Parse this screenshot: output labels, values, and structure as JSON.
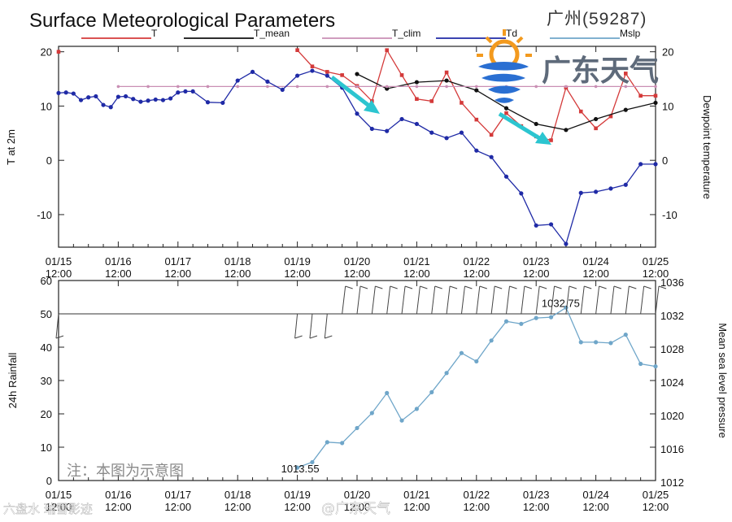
{
  "header": {
    "title": "Surface Meteorological Parameters",
    "station": "广州(59287)"
  },
  "logo": {
    "text": "广东天气"
  },
  "note": "注：本图为示意图",
  "watermarks": [
    "六盘水 瑞雪影迹",
    "@广东天气"
  ],
  "colors": {
    "T": "#d43a3a",
    "T_mean": "#111111",
    "T_clim": "#c98fb4",
    "Td": "#1f2aa6",
    "Mslp": "#6fa6c9",
    "arrow": "#2cc5d0",
    "logo_orange": "#f39a1e",
    "logo_blue": "#2a6fd2",
    "logo_text": "#5e6a7a"
  },
  "chart_data": [
    {
      "type": "line",
      "title": "Surface Meteorological Parameters",
      "ylabel": "T at 2m",
      "ylabel_right": "Dewpoint temperature",
      "ylim": [
        -16,
        21
      ],
      "yticks": [
        -10,
        0,
        10,
        20
      ],
      "xlim": [
        0,
        10
      ],
      "xticks": [
        0,
        1,
        2,
        3,
        4,
        5,
        6,
        7,
        8,
        9,
        10
      ],
      "xticklabels": [
        [
          "01/15",
          "12:00"
        ],
        [
          "01/16",
          "12:00"
        ],
        [
          "01/17",
          "12:00"
        ],
        [
          "01/18",
          "12:00"
        ],
        [
          "01/19",
          "12:00"
        ],
        [
          "01/20",
          "12:00"
        ],
        [
          "01/21",
          "12:00"
        ],
        [
          "01/22",
          "12:00"
        ],
        [
          "01/23",
          "12:00"
        ],
        [
          "01/24",
          "12:00"
        ],
        [
          "01/25",
          "12:00"
        ]
      ],
      "legend": [
        "T",
        "T_mean",
        "T_clim",
        "Td",
        "Mslp"
      ],
      "series": [
        {
          "name": "T",
          "color": "#d43a3a",
          "marker": "square",
          "x": [
            0,
            4.0,
            4.25,
            4.5,
            4.75,
            5.0,
            5.25,
            5.5,
            5.75,
            6.0,
            6.25,
            6.5,
            6.75,
            7.0,
            7.25,
            7.5,
            7.75,
            8.0,
            8.25,
            8.5,
            8.75,
            9.0,
            9.25,
            9.5,
            9.75,
            10.0
          ],
          "y": [
            20,
            20.3,
            17.3,
            16.3,
            15.7,
            13.7,
            10.9,
            20.3,
            15.7,
            11.3,
            10.9,
            16.2,
            10.6,
            7.5,
            4.7,
            8.7,
            6.3,
            4.4,
            3.7,
            13.4,
            9.0,
            5.9,
            8.1,
            16.0,
            11.9,
            11.9
          ]
        },
        {
          "name": "T_mean",
          "color": "#111111",
          "marker": "dot",
          "x": [
            5.0,
            5.5,
            6.0,
            6.5,
            7.0,
            7.5,
            8.0,
            8.5,
            9.0,
            9.5,
            10.0
          ],
          "y": [
            15.9,
            13.2,
            14.4,
            14.7,
            12.9,
            9.6,
            6.7,
            5.6,
            7.6,
            9.3,
            10.6
          ]
        },
        {
          "name": "T_clim",
          "color": "#c98fb4",
          "marker": "dot",
          "x": [
            1.0,
            1.5,
            2.0,
            2.5,
            3.0,
            3.5,
            4.0,
            4.5,
            5.0,
            5.5,
            6.0,
            6.5,
            7.0,
            7.5,
            8.0,
            8.5,
            9.0,
            9.5,
            10.0
          ],
          "y": [
            13.6,
            13.6,
            13.6,
            13.6,
            13.6,
            13.6,
            13.6,
            13.6,
            13.6,
            13.6,
            13.6,
            13.6,
            13.6,
            13.6,
            13.6,
            13.6,
            13.6,
            13.6,
            13.6
          ]
        },
        {
          "name": "Td",
          "color": "#1f2aa6",
          "marker": "dot",
          "x": [
            0,
            0.125,
            0.25,
            0.375,
            0.5,
            0.625,
            0.75,
            0.875,
            1.0,
            1.125,
            1.25,
            1.375,
            1.5,
            1.625,
            1.75,
            1.875,
            2.0,
            2.125,
            2.25,
            2.5,
            2.75,
            3.0,
            3.25,
            3.5,
            3.75,
            4.0,
            4.25,
            4.5,
            4.75,
            5.0,
            5.25,
            5.5,
            5.75,
            6.0,
            6.25,
            6.5,
            6.75,
            7.0,
            7.25,
            7.5,
            7.75,
            8.0,
            8.25,
            8.5,
            8.75,
            9.0,
            9.25,
            9.5,
            9.75,
            10.0
          ],
          "y": [
            12.4,
            12.5,
            12.3,
            11.1,
            11.6,
            11.8,
            10.2,
            9.8,
            11.7,
            11.8,
            11.3,
            10.8,
            11.0,
            11.2,
            11.1,
            11.4,
            12.5,
            12.7,
            12.7,
            10.7,
            10.6,
            14.7,
            16.3,
            14.5,
            13.0,
            15.6,
            16.5,
            15.6,
            13.4,
            8.6,
            5.8,
            5.4,
            7.6,
            6.7,
            5.1,
            4.1,
            5.1,
            1.8,
            0.6,
            -3.0,
            -6.1,
            -12.0,
            -11.8,
            -15.4,
            -6.0,
            -5.8,
            -5.2,
            -4.5,
            -0.7,
            -0.7
          ]
        }
      ]
    },
    {
      "type": "line",
      "ylabel": "24h Rainfall",
      "ylabel_right": "Mean sea level pressure",
      "ylim": [
        0,
        60
      ],
      "yticks": [
        0,
        10,
        20,
        30,
        40,
        50,
        60
      ],
      "y2lim": [
        1012,
        1036
      ],
      "y2ticks": [
        1012,
        1016,
        1020,
        1024,
        1028,
        1032,
        1036
      ],
      "xlim": [
        0,
        10
      ],
      "xticks": [
        0,
        1,
        2,
        3,
        4,
        5,
        6,
        7,
        8,
        9,
        10
      ],
      "xticklabels": [
        [
          "01/15",
          "12:00"
        ],
        [
          "01/16",
          "12:00"
        ],
        [
          "01/17",
          "12:00"
        ],
        [
          "01/18",
          "12:00"
        ],
        [
          "01/19",
          "12:00"
        ],
        [
          "01/20",
          "12:00"
        ],
        [
          "01/21",
          "12:00"
        ],
        [
          "01/22",
          "12:00"
        ],
        [
          "01/23",
          "12:00"
        ],
        [
          "01/24",
          "12:00"
        ],
        [
          "01/25",
          "12:00"
        ]
      ],
      "series": [
        {
          "name": "Mslp",
          "color": "#6fa6c9",
          "marker": "dot",
          "x": [
            4.0,
            4.25,
            4.5,
            4.75,
            5.0,
            5.25,
            5.5,
            5.75,
            6.0,
            6.25,
            6.5,
            6.75,
            7.0,
            7.25,
            7.5,
            7.75,
            8.0,
            8.25,
            8.5,
            8.75,
            9.0,
            9.25,
            9.5,
            9.75,
            10.0
          ],
          "y": [
            1013.55,
            1014.2,
            1016.6,
            1016.5,
            1018.3,
            1020.1,
            1022.5,
            1019.2,
            1020.6,
            1022.6,
            1024.9,
            1027.3,
            1026.3,
            1028.8,
            1031.1,
            1030.8,
            1031.5,
            1031.6,
            1032.75,
            1028.6,
            1028.6,
            1028.5,
            1029.5,
            1026.0,
            1025.7
          ]
        }
      ],
      "annotations": [
        {
          "text": "1013.55",
          "x": 4.0,
          "y": 1013.55,
          "color": "#1f2aa6"
        },
        {
          "text": "1032.75",
          "x": 8.5,
          "y": 1032.75,
          "color": "#d43a3a"
        }
      ],
      "reference_line": {
        "axis": "left",
        "value": 50
      },
      "wind_barbs": {
        "baseline": 50,
        "x": [
          0.0,
          4.0,
          4.25,
          4.5,
          4.75,
          5.0,
          5.25,
          5.5,
          5.75,
          6.0,
          6.25,
          6.5,
          6.75,
          7.0,
          7.25,
          7.5,
          7.75,
          8.0,
          8.25,
          8.5,
          8.75,
          9.0,
          9.25,
          9.5,
          9.75,
          10.0
        ],
        "dir_up": [
          false,
          false,
          false,
          false,
          true,
          true,
          true,
          true,
          true,
          true,
          true,
          true,
          true,
          true,
          true,
          true,
          true,
          true,
          true,
          true,
          true,
          true,
          true,
          true,
          true,
          true
        ]
      }
    }
  ]
}
